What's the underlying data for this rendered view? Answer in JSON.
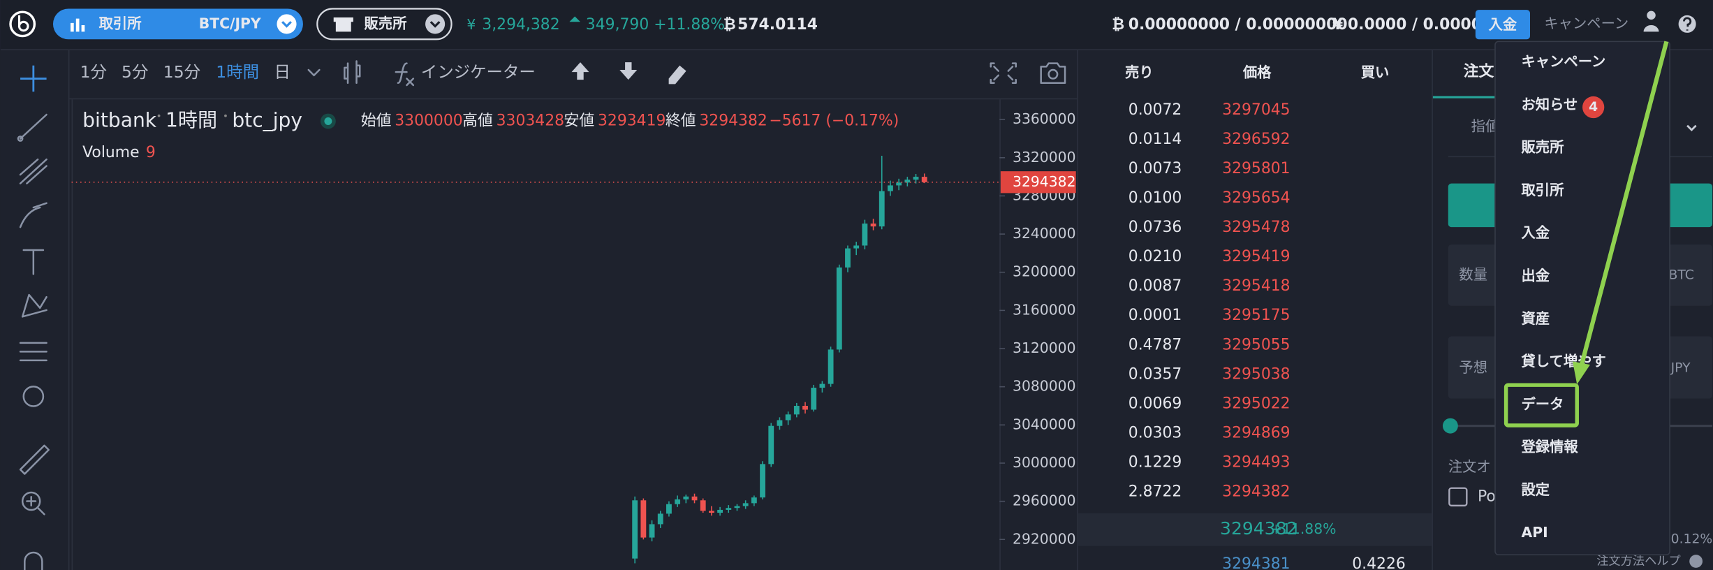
{
  "header": {
    "yen_symbol": "¥",
    "btc_symbol": "₿",
    "market_button": "取引所",
    "pair": "BTC/JPY",
    "shop_button": "販売所",
    "price": "3,294,382",
    "change": "349,790 +11.88%",
    "volume": "574.0114",
    "btc_balance": "0.00000000 / 0.00000000",
    "jpy_balance": "0.0000 / 0.0000",
    "deposit": "入金",
    "campaign": "キャンペーン"
  },
  "toolbar": {
    "intervals": [
      "1分",
      "5分",
      "15分",
      "1時間"
    ],
    "day": "日",
    "indicator": "インジケーター"
  },
  "chart": {
    "type": "candlestick",
    "exchange": "bitbank",
    "interval": "1時間",
    "symbol": "btc_jpy",
    "legend": [
      {
        "label": "始値",
        "value": 3300000
      },
      {
        "label": "高値",
        "value": 3303428
      },
      {
        "label": "安値",
        "value": 3293419
      },
      {
        "label": "終値",
        "value": 3294382
      }
    ],
    "change": "−5617 (−0.17%)",
    "volume_label": "Volume",
    "volume": 9,
    "last_price": 3294382,
    "ylim": [
      2888000,
      3380000
    ],
    "yticks": [
      3360000,
      3320000,
      3280000,
      3240000,
      3200000,
      3160000,
      3120000,
      3080000,
      3040000,
      3000000,
      2960000,
      2920000
    ],
    "colors": {
      "up": "#26a69a",
      "down": "#ef5350"
    },
    "candles": {
      "open": [
        2900000,
        2961000,
        2922000,
        2936000,
        2947000,
        2957000,
        2962000,
        2965000,
        2961000,
        2950000,
        2948000,
        2951000,
        2953000,
        2955000,
        2958000,
        2964000,
        2999000,
        3039000,
        3045000,
        3051000,
        3060000,
        3056000,
        3079000,
        3083000,
        3119000,
        3205000,
        3225000,
        3228000,
        3251000,
        3248000,
        3285000,
        3291000,
        3294000,
        3297000,
        3300000
      ],
      "high": [
        2965000,
        2963000,
        2940000,
        2950000,
        2960000,
        2966000,
        2967000,
        2968000,
        2963000,
        2955000,
        2954000,
        2956000,
        2957000,
        2961000,
        2966000,
        3002000,
        3042000,
        3048000,
        3054000,
        3063000,
        3064000,
        3082000,
        3086000,
        3122000,
        3208000,
        3228000,
        3232000,
        3255000,
        3256000,
        3322000,
        3296000,
        3298000,
        3300000,
        3303000,
        3303428
      ],
      "low": [
        2895000,
        2920000,
        2918000,
        2932000,
        2944000,
        2954000,
        2958000,
        2958000,
        2948000,
        2945000,
        2945000,
        2948000,
        2950000,
        2952000,
        2955000,
        2962000,
        2996000,
        3035000,
        3040000,
        3048000,
        3052000,
        3054000,
        3074000,
        3080000,
        3116000,
        3200000,
        3218000,
        3224000,
        3244000,
        3245000,
        3280000,
        3286000,
        3290000,
        3293000,
        3293419
      ],
      "close": [
        2961000,
        2922000,
        2936000,
        2947000,
        2957000,
        2962000,
        2965000,
        2961000,
        2950000,
        2948000,
        2951000,
        2953000,
        2955000,
        2958000,
        2964000,
        2999000,
        3039000,
        3045000,
        3051000,
        3060000,
        3056000,
        3079000,
        3083000,
        3119000,
        3205000,
        3225000,
        3228000,
        3251000,
        3248000,
        3285000,
        3291000,
        3294000,
        3297000,
        3300000,
        3294382
      ]
    }
  },
  "order_book": {
    "headers": [
      "売り",
      "価格",
      "買い"
    ],
    "asks": [
      {
        "amount": "0.0072",
        "price": "3297045"
      },
      {
        "amount": "0.0114",
        "price": "3296592"
      },
      {
        "amount": "0.0073",
        "price": "3295801"
      },
      {
        "amount": "0.0100",
        "price": "3295654"
      },
      {
        "amount": "0.0736",
        "price": "3295478"
      },
      {
        "amount": "0.0210",
        "price": "3295419"
      },
      {
        "amount": "0.0087",
        "price": "3295418"
      },
      {
        "amount": "0.0001",
        "price": "3295175"
      },
      {
        "amount": "0.4787",
        "price": "3295055"
      },
      {
        "amount": "0.0357",
        "price": "3295038"
      },
      {
        "amount": "0.0069",
        "price": "3295022"
      },
      {
        "amount": "0.0303",
        "price": "3294869"
      },
      {
        "amount": "0.1229",
        "price": "3294493"
      },
      {
        "amount": "2.8722",
        "price": "3294382"
      }
    ],
    "mid": {
      "price": "3294382",
      "change": "+11.88%"
    },
    "bids": [
      {
        "price": "3294381",
        "amount": "0.4226"
      }
    ]
  },
  "order_panel": {
    "tab": "注文",
    "order_type": "指値",
    "amount_label": "数量",
    "amount_unit": "BTC",
    "estimate_label": "予想",
    "estimate_unit": "JPY",
    "options_label": "注文オ",
    "post_only": "Po",
    "fee": "0.12%",
    "help": "注文方法ヘルプ"
  },
  "menu": {
    "items": [
      "キャンペーン",
      "お知らせ",
      "販売所",
      "取引所",
      "入金",
      "出金",
      "資産",
      "貸して増やす",
      "データ",
      "登録情報",
      "設定",
      "API"
    ],
    "badge": 4,
    "badge_item": 1,
    "highlighted": 8
  }
}
